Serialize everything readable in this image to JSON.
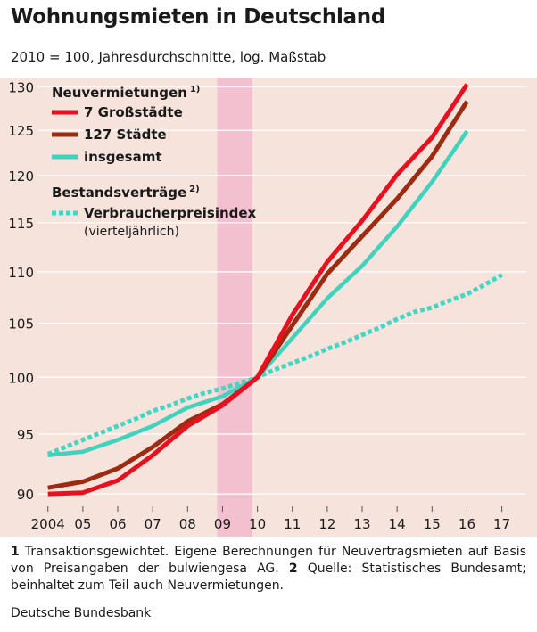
{
  "title": "Wohnungsmieten in Deutschland",
  "subtitle": "2010 = 100, Jahresdurchschnitte, log. Maßstab",
  "footnotes": {
    "n1": "1",
    "t1": "Transaktionsgewichtet. Eigene Berechnungen für Neuvertragsmieten auf Basis von Preisangaben der bulwiengesa AG.",
    "n2": "2",
    "t2": "Quelle: Statistisches Bundesamt; beinhaltet zum Teil auch Neuvermietungen."
  },
  "source": "Deutsche Bundesbank",
  "colors": {
    "background": "#f5e3dc",
    "gridline": "#ffffff",
    "highlight_band": "#f2c0cf",
    "series_7": "#e8101f",
    "series_127": "#9c2b12",
    "series_all": "#3fd3be",
    "series_cpi": "#44d6c4"
  },
  "chart_data": {
    "type": "line",
    "title": "Wohnungsmieten in Deutschland",
    "subtitle": "2010 = 100, Jahresdurchschnitte, log. Maßstab",
    "log_scale": true,
    "ylim": [
      89,
      131
    ],
    "yticks": [
      90,
      95,
      100,
      105,
      110,
      115,
      120,
      125,
      130
    ],
    "xlim": [
      2003.7,
      2017.7
    ],
    "xtick_values": [
      2004,
      2005,
      2006,
      2007,
      2008,
      2009,
      2010,
      2011,
      2012,
      2013,
      2014,
      2015,
      2016,
      2017
    ],
    "xtick_labels": [
      "2004",
      "05",
      "06",
      "07",
      "08",
      "09",
      "10",
      "11",
      "12",
      "13",
      "14",
      "15",
      "16",
      "17"
    ],
    "grid": "horizontal",
    "highlight_band": [
      2008.85,
      2009.85
    ],
    "legend_groups": [
      {
        "title": "Neuvermietungen",
        "sup": "1)"
      },
      {
        "title": "Bestandsverträge",
        "sup": "2)"
      }
    ],
    "series": [
      {
        "name": "7 Großstädte",
        "group": 0,
        "style": "solid",
        "x": [
          2004,
          2005,
          2006,
          2007,
          2008,
          2009,
          2010,
          2011,
          2012,
          2013,
          2014,
          2015,
          2016
        ],
        "y": [
          90.0,
          90.1,
          91.1,
          93.2,
          95.7,
          97.5,
          100.0,
          105.8,
          111.0,
          115.2,
          120.1,
          124.2,
          130.3
        ]
      },
      {
        "name": "127 Städte",
        "group": 0,
        "style": "solid",
        "x": [
          2004,
          2005,
          2006,
          2007,
          2008,
          2009,
          2010,
          2011,
          2012,
          2013,
          2014,
          2015,
          2016
        ],
        "y": [
          90.5,
          91.0,
          92.1,
          93.9,
          96.1,
          97.6,
          100.0,
          104.8,
          109.8,
          113.6,
          117.5,
          122.1,
          128.3
        ]
      },
      {
        "name": "insgesamt",
        "group": 0,
        "style": "solid",
        "x": [
          2004,
          2005,
          2006,
          2007,
          2008,
          2009,
          2010,
          2011,
          2012,
          2013,
          2014,
          2015,
          2016
        ],
        "y": [
          93.2,
          93.5,
          94.5,
          95.7,
          97.3,
          98.3,
          100.0,
          103.6,
          107.4,
          110.6,
          114.6,
          119.3,
          124.9
        ]
      },
      {
        "name": "Verbraucherpreisindex",
        "name_note": "(vierteljährlich)",
        "group": 1,
        "style": "dotted",
        "x": [
          2004,
          2004.5,
          2005,
          2005.5,
          2006,
          2006.5,
          2007,
          2007.5,
          2008,
          2008.5,
          2009,
          2009.5,
          2010,
          2010.5,
          2011,
          2011.5,
          2012,
          2012.5,
          2013,
          2013.5,
          2014,
          2014.5,
          2015,
          2015.5,
          2016,
          2016.5,
          2017
        ],
        "y": [
          93.3,
          93.9,
          94.5,
          95.1,
          95.7,
          96.3,
          97.0,
          97.5,
          98.1,
          98.6,
          99.0,
          99.5,
          100.0,
          100.7,
          101.3,
          101.9,
          102.6,
          103.2,
          103.9,
          104.6,
          105.4,
          106.1,
          106.5,
          107.2,
          107.8,
          108.7,
          109.7
        ]
      }
    ]
  }
}
